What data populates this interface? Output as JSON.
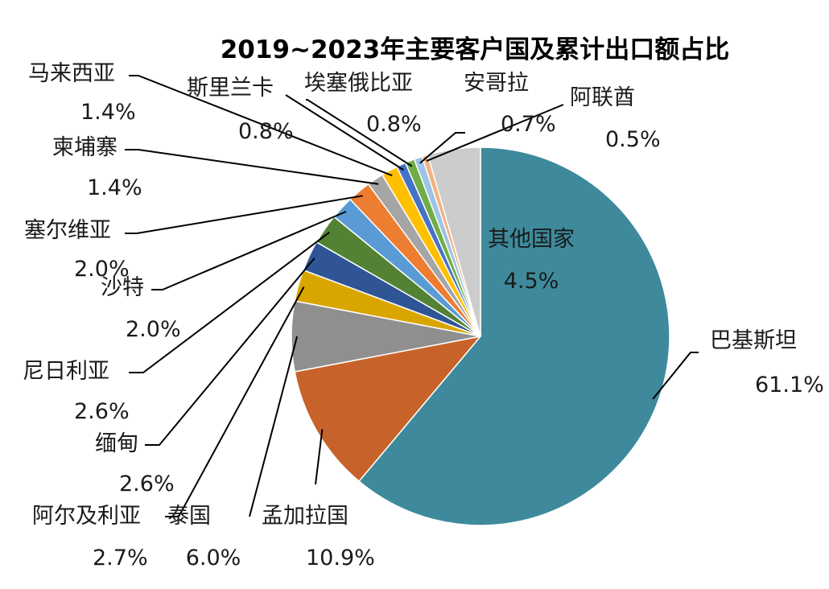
{
  "chart_data": {
    "type": "pie",
    "title": "2019~2023年主要客户国及累计出口额占比",
    "slices": [
      {
        "label": "巴基斯坦",
        "value": 61.1,
        "display": "61.1%",
        "color": "#3e8a9c"
      },
      {
        "label": "孟加拉国",
        "value": 10.9,
        "display": "10.9%",
        "color": "#c7632a"
      },
      {
        "label": "泰国",
        "value": 6.0,
        "display": "6.0%",
        "color": "#8f8f8f"
      },
      {
        "label": "阿尔及利亚",
        "value": 2.7,
        "display": "2.7%",
        "color": "#d9a600"
      },
      {
        "label": "缅甸",
        "value": 2.6,
        "display": "2.6%",
        "color": "#2f5597"
      },
      {
        "label": "尼日利亚",
        "value": 2.6,
        "display": "2.6%",
        "color": "#548235"
      },
      {
        "label": "沙特",
        "value": 2.0,
        "display": "2.0%",
        "color": "#5b9bd5"
      },
      {
        "label": "塞尔维亚",
        "value": 2.0,
        "display": "2.0%",
        "color": "#ed7d31"
      },
      {
        "label": "柬埔寨",
        "value": 1.4,
        "display": "1.4%",
        "color": "#a5a5a5"
      },
      {
        "label": "马来西亚",
        "value": 1.4,
        "display": "1.4%",
        "color": "#ffc000"
      },
      {
        "label": "斯里兰卡",
        "value": 0.8,
        "display": "0.8%",
        "color": "#4472c4"
      },
      {
        "label": "埃塞俄比亚",
        "value": 0.8,
        "display": "0.8%",
        "color": "#70ad47"
      },
      {
        "label": "安哥拉",
        "value": 0.7,
        "display": "0.7%",
        "color": "#9dc3e6"
      },
      {
        "label": "阿联酋",
        "value": 0.5,
        "display": "0.5%",
        "color": "#f4b183"
      },
      {
        "label": "其他国家",
        "value": 4.5,
        "display": "4.5%",
        "color": "#cccccc"
      }
    ]
  }
}
